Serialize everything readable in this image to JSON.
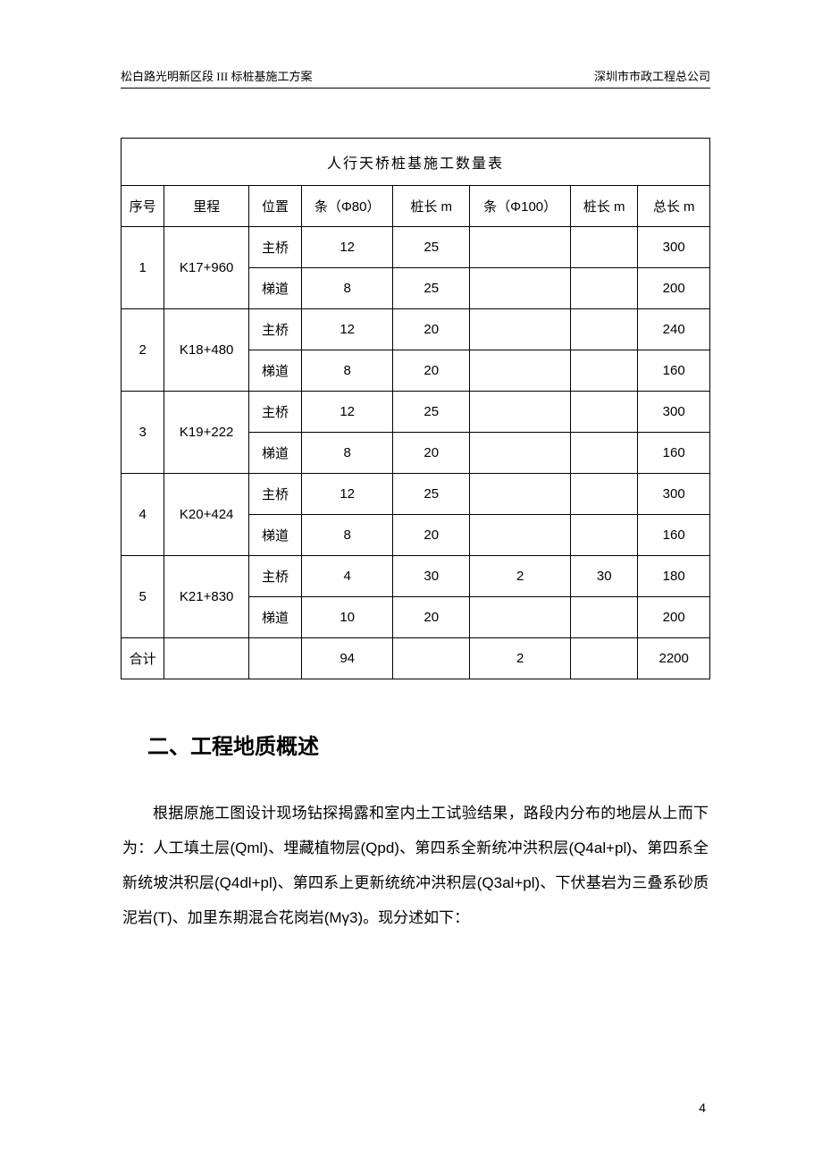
{
  "header": {
    "left": "松白路光明新区段 III 标桩基施工方案",
    "right": "深圳市市政工程总公司"
  },
  "table": {
    "title": "人行天桥桩基施工数量表",
    "columns": [
      "序号",
      "里程",
      "位置",
      "条（Φ80）",
      "桩长 m",
      "条（Φ100）",
      "桩长 m",
      "总长 m"
    ],
    "rows": [
      {
        "seq": "1",
        "mile": "K17+960",
        "sub": [
          {
            "pos": "主桥",
            "phi80": "12",
            "len1": "25",
            "phi100": "",
            "len2": "",
            "total": "300"
          },
          {
            "pos": "梯道",
            "phi80": "8",
            "len1": "25",
            "phi100": "",
            "len2": "",
            "total": "200"
          }
        ]
      },
      {
        "seq": "2",
        "mile": "K18+480",
        "sub": [
          {
            "pos": "主桥",
            "phi80": "12",
            "len1": "20",
            "phi100": "",
            "len2": "",
            "total": "240"
          },
          {
            "pos": "梯道",
            "phi80": "8",
            "len1": "20",
            "phi100": "",
            "len2": "",
            "total": "160"
          }
        ]
      },
      {
        "seq": "3",
        "mile": "K19+222",
        "sub": [
          {
            "pos": "主桥",
            "phi80": "12",
            "len1": "25",
            "phi100": "",
            "len2": "",
            "total": "300"
          },
          {
            "pos": "梯道",
            "phi80": "8",
            "len1": "20",
            "phi100": "",
            "len2": "",
            "total": "160"
          }
        ]
      },
      {
        "seq": "4",
        "mile": "K20+424",
        "sub": [
          {
            "pos": "主桥",
            "phi80": "12",
            "len1": "25",
            "phi100": "",
            "len2": "",
            "total": "300"
          },
          {
            "pos": "梯道",
            "phi80": "8",
            "len1": "20",
            "phi100": "",
            "len2": "",
            "total": "160"
          }
        ]
      },
      {
        "seq": "5",
        "mile": "K21+830",
        "sub": [
          {
            "pos": "主桥",
            "phi80": "4",
            "len1": "30",
            "phi100": "2",
            "len2": "30",
            "total": "180"
          },
          {
            "pos": "梯道",
            "phi80": "10",
            "len1": "20",
            "phi100": "",
            "len2": "",
            "total": "200"
          }
        ]
      }
    ],
    "sum": {
      "label": "合计",
      "phi80": "94",
      "len1": "",
      "phi100": "2",
      "len2": "",
      "total": "2200"
    }
  },
  "section": {
    "heading": "二、工程地质概述",
    "body": "根据原施工图设计现场钻探揭露和室内土工试验结果，路段内分布的地层从上而下为：人工填土层(Qml)、埋藏植物层(Qpd)、第四系全新统冲洪积层(Q4al+pl)、第四系全新统坡洪积层(Q4dl+pl)、第四系上更新统统冲洪积层(Q3al+pl)、下伏基岩为三叠系砂质泥岩(T)、加里东期混合花岗岩(Mγ3)。现分述如下："
  },
  "page_number": "4"
}
